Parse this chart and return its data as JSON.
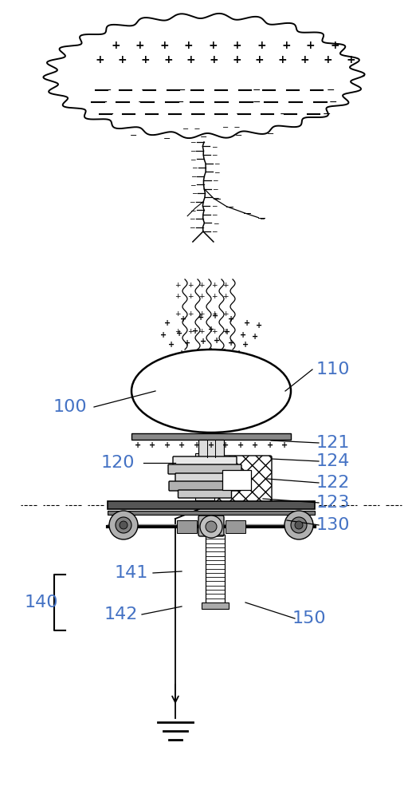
{
  "bg_color": "#ffffff",
  "lc": "#000000",
  "blue": "#4472c4",
  "figw": 5.12,
  "figh": 10.0,
  "dpi": 100,
  "xlim": [
    0,
    512
  ],
  "ylim": [
    1000,
    0
  ]
}
